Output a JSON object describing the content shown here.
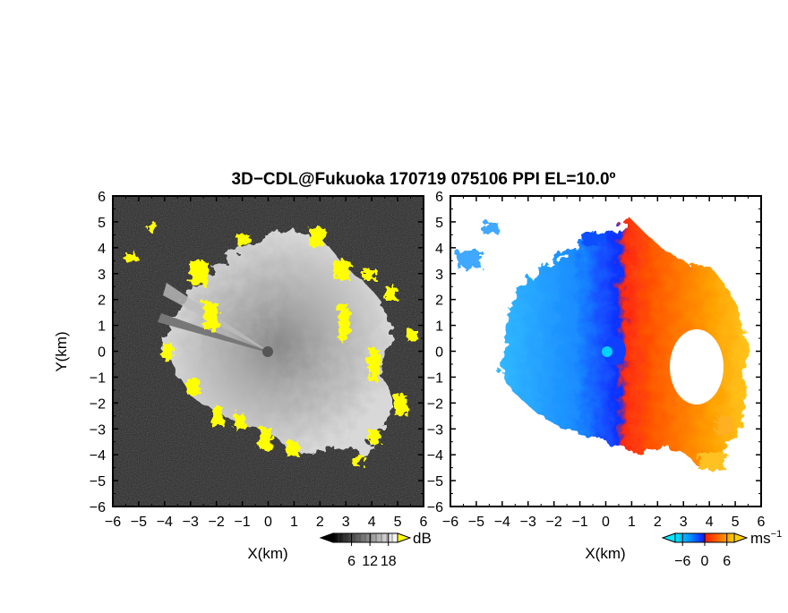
{
  "figure": {
    "title": "3D−CDL@Fukuoka 170719 075106 PPI EL=10.0º"
  },
  "chart_data": [
    {
      "type": "heatmap",
      "panel": "left",
      "quantity": "SNR",
      "xlabel": "X(km)",
      "ylabel": "Y(km)",
      "xlim": [
        -6,
        6
      ],
      "ylim": [
        -6,
        6
      ],
      "x_ticks": [
        -6,
        -5,
        -4,
        -3,
        -2,
        -1,
        0,
        1,
        2,
        3,
        4,
        5,
        6
      ],
      "x_tick_labels": [
        "−6",
        "−5",
        "−4",
        "−3",
        "−2",
        "−1",
        "0",
        "1",
        "2",
        "3",
        "4",
        "5",
        "6"
      ],
      "y_ticks": [
        6,
        5,
        4,
        3,
        2,
        1,
        0,
        -1,
        -2,
        -3,
        -4,
        -5,
        -6
      ],
      "y_tick_labels": [
        "6",
        "5",
        "4",
        "3",
        "2",
        "1",
        "0",
        "−1",
        "−2",
        "−3",
        "−4",
        "−5",
        "−6"
      ],
      "colorbar": {
        "unit": "dB",
        "ticks": [
          6,
          12,
          18
        ],
        "tick_labels": [
          "6",
          "12",
          "18"
        ],
        "colors": [
          "#000000",
          "#ffffff"
        ],
        "over_color": "#ffff00"
      },
      "background_color": "#202020",
      "edge_highlight_color": "#ffff00",
      "radar_center": [
        0,
        0
      ],
      "echo_radius_km": 4.3
    },
    {
      "type": "heatmap",
      "panel": "right",
      "quantity": "Doppler velocity",
      "xlabel": "X(km)",
      "xlim": [
        -6,
        6
      ],
      "ylim": [
        -6,
        6
      ],
      "x_ticks": [
        -6,
        -5,
        -4,
        -3,
        -2,
        -1,
        0,
        1,
        2,
        3,
        4,
        5,
        6
      ],
      "x_tick_labels": [
        "−6",
        "−5",
        "−4",
        "−3",
        "−2",
        "−1",
        "0",
        "1",
        "2",
        "3",
        "4",
        "5",
        "6"
      ],
      "y_ticks": [
        6,
        5,
        4,
        3,
        2,
        1,
        0,
        -1,
        -2,
        -3,
        -4,
        -5,
        -6
      ],
      "y_tick_labels": [
        "6",
        "5",
        "4",
        "3",
        "2",
        "1",
        "0",
        "−1",
        "−2",
        "−3",
        "−4",
        "−5",
        "−6"
      ],
      "colorbar": {
        "unit": "ms",
        "unit_exp": "−1",
        "range": [
          -8,
          8
        ],
        "ticks": [
          -6,
          0,
          6
        ],
        "tick_labels": [
          "−6",
          "0",
          "6"
        ],
        "colors": [
          "#00e0ff",
          "#0090ff",
          "#1020ff",
          "#ff2000",
          "#ff7000",
          "#ffd000"
        ]
      },
      "approaching_color": "#1060ff",
      "receding_color": "#ff6000",
      "center_marker_color": "#00d0ff"
    }
  ]
}
